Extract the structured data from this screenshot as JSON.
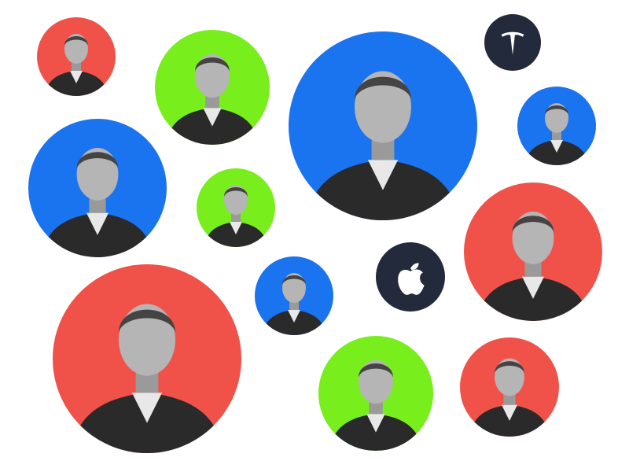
{
  "colors": {
    "red": "#f0524a",
    "green": "#78ee1c",
    "blue": "#1b74ef",
    "navy": "#232a3b",
    "logo": "#ffffff"
  },
  "bubbles": [
    {
      "kind": "portrait",
      "color": "red"
    },
    {
      "kind": "portrait",
      "color": "green"
    },
    {
      "kind": "portrait",
      "color": "blue"
    },
    {
      "kind": "logo",
      "color": "navy",
      "icon": "tesla-logo-icon"
    },
    {
      "kind": "portrait",
      "color": "blue"
    },
    {
      "kind": "portrait",
      "color": "blue"
    },
    {
      "kind": "portrait",
      "color": "green"
    },
    {
      "kind": "portrait",
      "color": "red"
    },
    {
      "kind": "logo",
      "color": "navy",
      "icon": "apple-logo-icon"
    },
    {
      "kind": "portrait",
      "color": "blue"
    },
    {
      "kind": "portrait",
      "color": "red"
    },
    {
      "kind": "portrait",
      "color": "green"
    },
    {
      "kind": "portrait",
      "color": "red"
    }
  ]
}
